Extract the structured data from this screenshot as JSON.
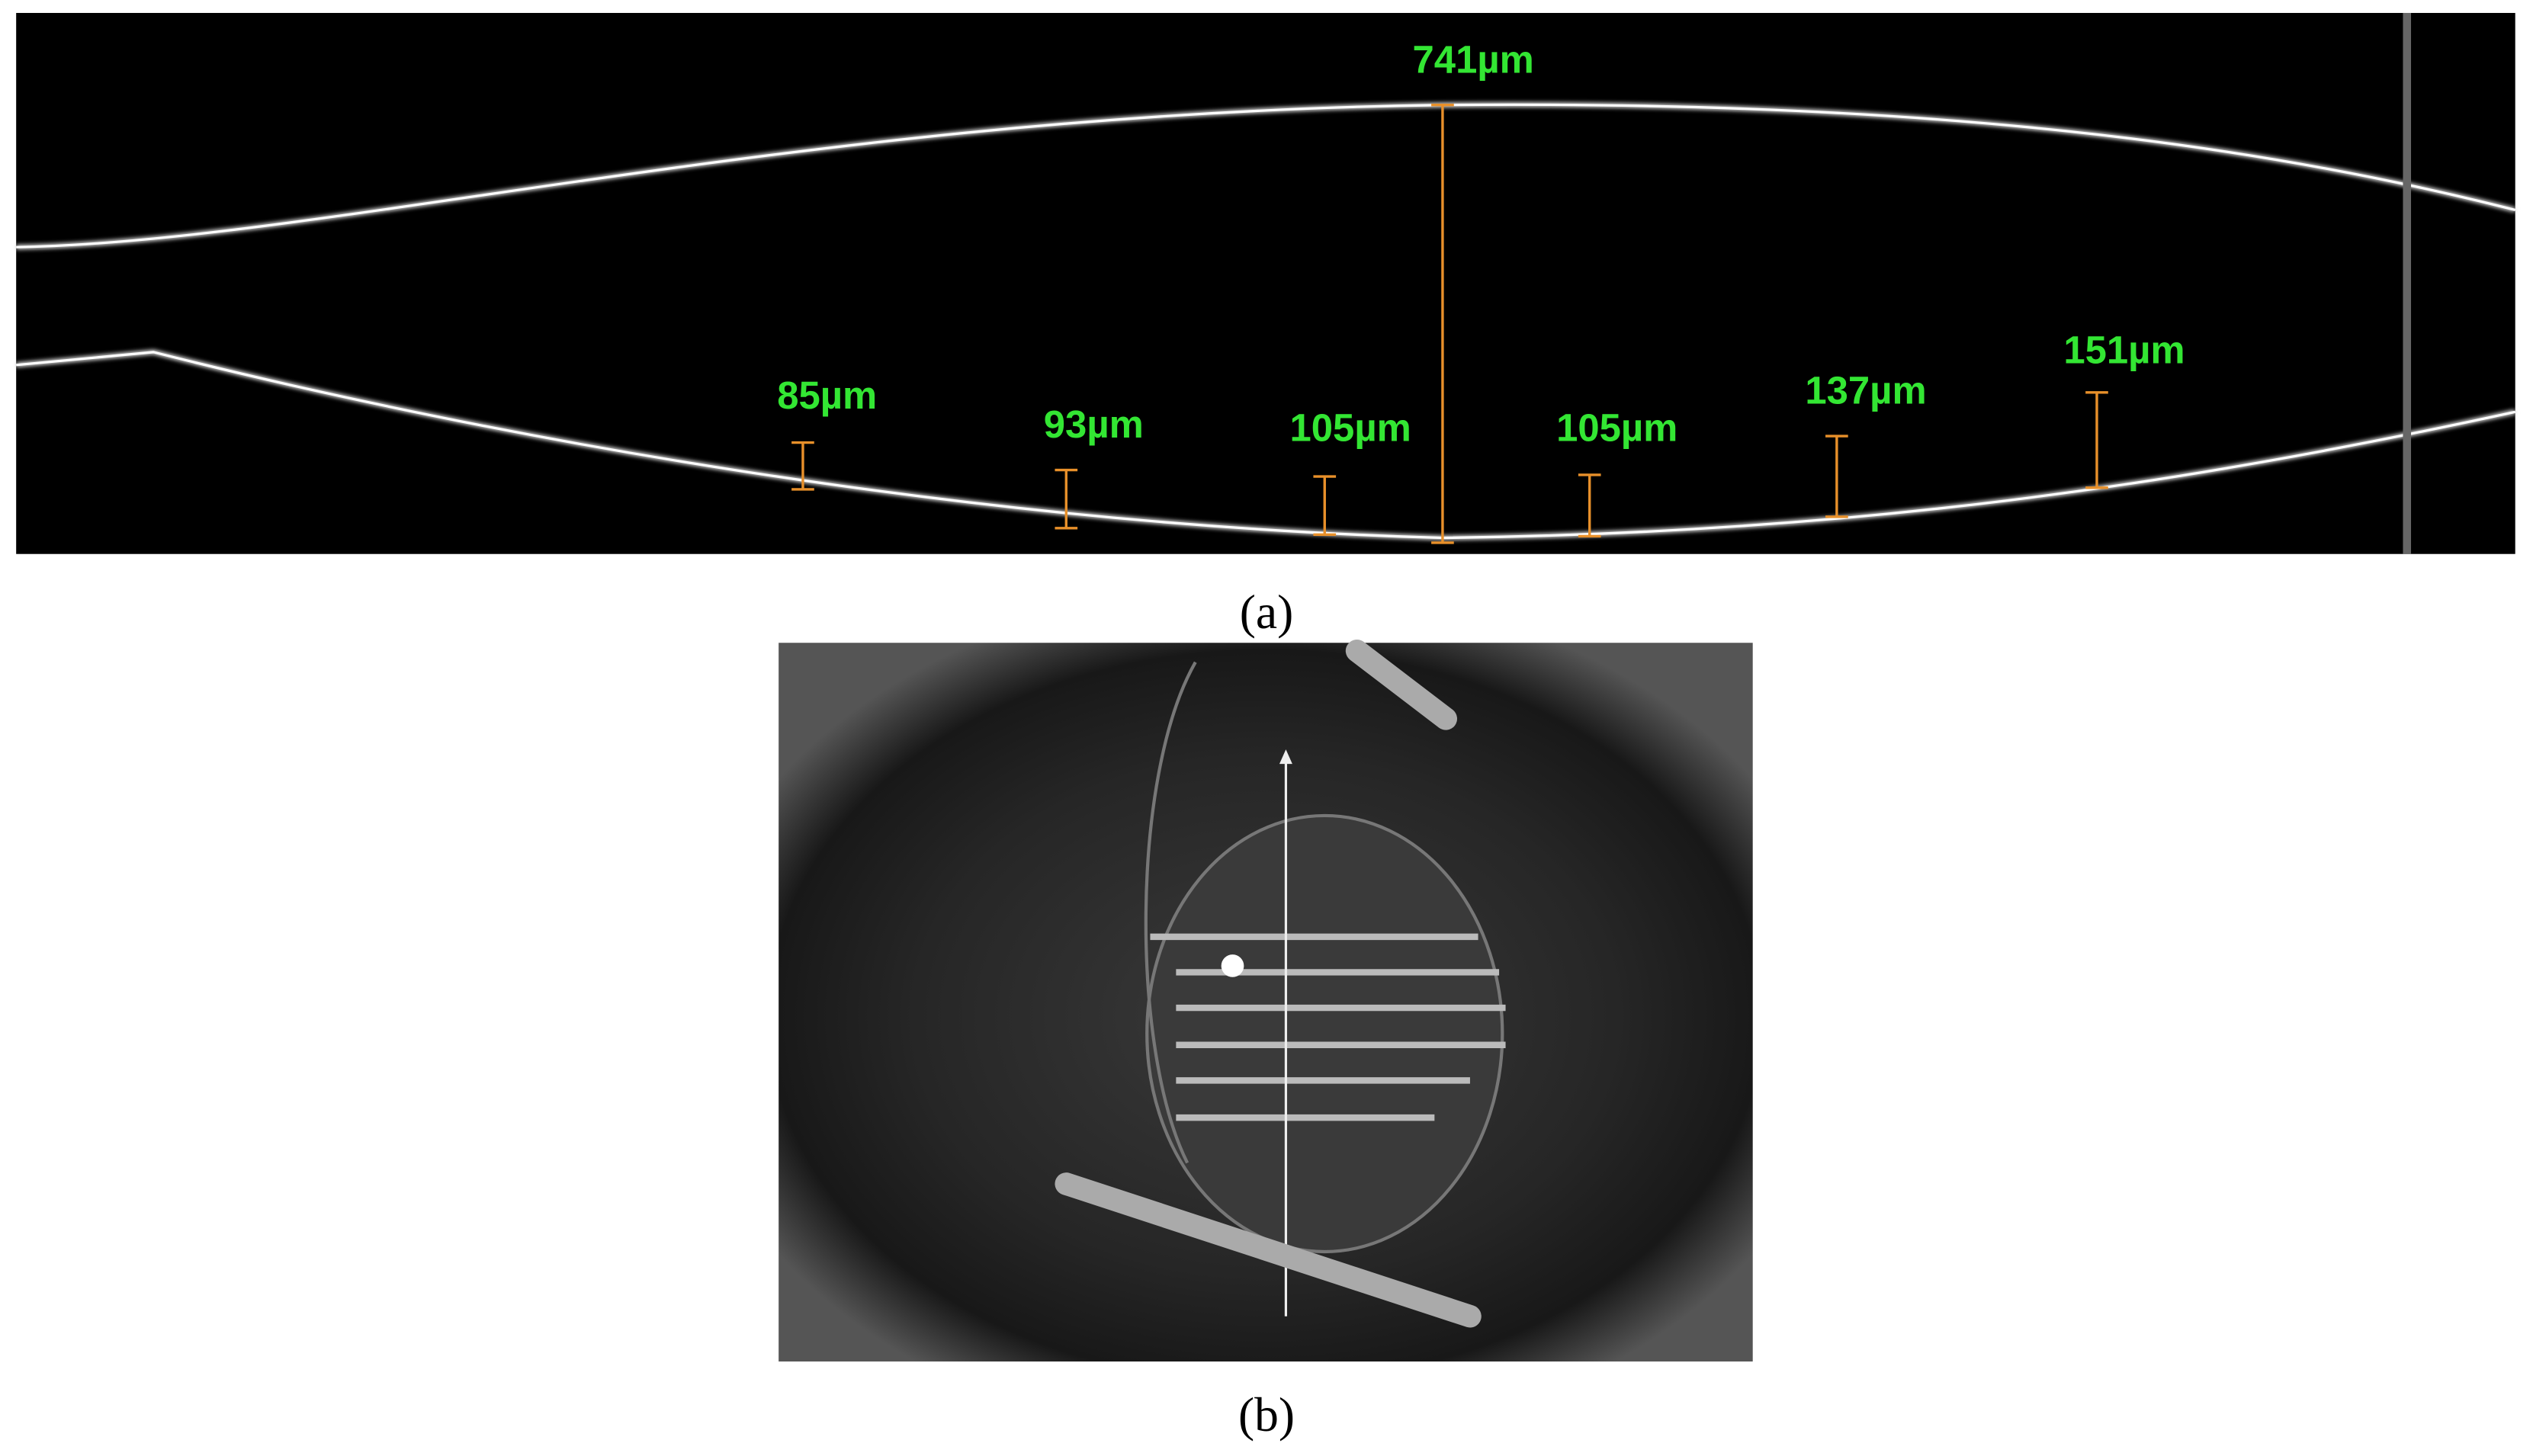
{
  "panel_a": {
    "label": "(a)",
    "measurements": [
      "741µm",
      "85µm",
      "93µm",
      "105µm",
      "105µm",
      "137µm",
      "151µm"
    ]
  },
  "panel_b": {
    "label": "(b)"
  }
}
